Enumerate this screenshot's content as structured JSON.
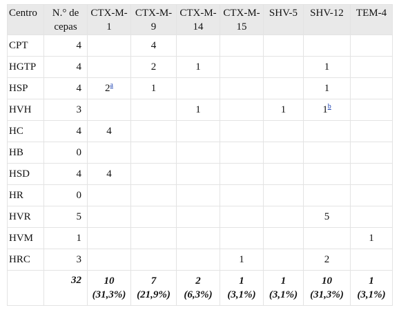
{
  "table": {
    "headers": [
      "Centro",
      "N.° de cepas",
      "CTX-M-1",
      "CTX-M-9",
      "CTX-M-14",
      "CTX-M-15",
      "SHV-5",
      "SHV-12",
      "TEM-4"
    ],
    "header_lines": [
      [
        "Centro"
      ],
      [
        "N.° de",
        "cepas"
      ],
      [
        "CTX-M-",
        "1"
      ],
      [
        "CTX-M-",
        "9"
      ],
      [
        "CTX-M-",
        "14"
      ],
      [
        "CTX-M-",
        "15"
      ],
      [
        "SHV-5"
      ],
      [
        "SHV-12"
      ],
      [
        "TEM-4"
      ]
    ],
    "rows": [
      {
        "centro": "CPT",
        "n": "4",
        "vals": [
          "",
          "4",
          "",
          "",
          "",
          "",
          ""
        ]
      },
      {
        "centro": "HGTP",
        "n": "4",
        "vals": [
          "",
          "2",
          "1",
          "",
          "",
          "1",
          ""
        ]
      },
      {
        "centro": "HSP",
        "n": "4",
        "vals": [
          "2",
          "1",
          "",
          "",
          "",
          "1",
          ""
        ],
        "notes": {
          "0": "a"
        }
      },
      {
        "centro": "HVH",
        "n": "3",
        "vals": [
          "",
          "",
          "1",
          "",
          "1",
          "1",
          ""
        ],
        "notes": {
          "5": "b"
        }
      },
      {
        "centro": "HC",
        "n": "4",
        "vals": [
          "4",
          "",
          "",
          "",
          "",
          "",
          ""
        ]
      },
      {
        "centro": "HB",
        "n": "0",
        "vals": [
          "",
          "",
          "",
          "",
          "",
          "",
          ""
        ]
      },
      {
        "centro": "HSD",
        "n": "4",
        "vals": [
          "4",
          "",
          "",
          "",
          "",
          "",
          ""
        ]
      },
      {
        "centro": "HR",
        "n": "0",
        "vals": [
          "",
          "",
          "",
          "",
          "",
          "",
          ""
        ]
      },
      {
        "centro": "HVR",
        "n": "5",
        "vals": [
          "",
          "",
          "",
          "",
          "",
          "5",
          ""
        ]
      },
      {
        "centro": "HVM",
        "n": "1",
        "vals": [
          "",
          "",
          "",
          "",
          "",
          "",
          "1"
        ]
      },
      {
        "centro": "HRC",
        "n": "3",
        "vals": [
          "",
          "",
          "",
          "1",
          "",
          "2",
          ""
        ]
      }
    ],
    "total": {
      "n": "32",
      "vals": [
        {
          "count": "10",
          "pct": "(31,3%)"
        },
        {
          "count": "7",
          "pct": "(21,9%)"
        },
        {
          "count": "2",
          "pct": "(6,3%)"
        },
        {
          "count": "1",
          "pct": "(3,1%)"
        },
        {
          "count": "1",
          "pct": "(3,1%)"
        },
        {
          "count": "10",
          "pct": "(31,3%)"
        },
        {
          "count": "1",
          "pct": "(3,1%)"
        }
      ]
    }
  }
}
